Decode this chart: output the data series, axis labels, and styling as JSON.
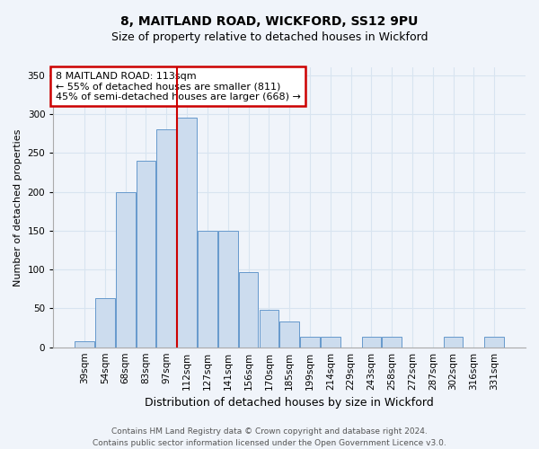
{
  "title1": "8, MAITLAND ROAD, WICKFORD, SS12 9PU",
  "title2": "Size of property relative to detached houses in Wickford",
  "xlabel": "Distribution of detached houses by size in Wickford",
  "ylabel": "Number of detached properties",
  "categories": [
    "39sqm",
    "54sqm",
    "68sqm",
    "83sqm",
    "97sqm",
    "112sqm",
    "127sqm",
    "141sqm",
    "156sqm",
    "170sqm",
    "185sqm",
    "199sqm",
    "214sqm",
    "229sqm",
    "243sqm",
    "258sqm",
    "272sqm",
    "287sqm",
    "302sqm",
    "316sqm",
    "331sqm"
  ],
  "values": [
    8,
    63,
    200,
    240,
    280,
    295,
    150,
    150,
    97,
    48,
    33,
    13,
    13,
    0,
    13,
    13,
    0,
    0,
    13,
    0,
    13
  ],
  "bar_color": "#ccdcee",
  "bar_edge_color": "#6699cc",
  "bar_linewidth": 0.7,
  "vline_x": 4.5,
  "vline_color": "#cc0000",
  "ylim": [
    0,
    360
  ],
  "yticks": [
    0,
    50,
    100,
    150,
    200,
    250,
    300,
    350
  ],
  "annotation_title": "8 MAITLAND ROAD: 113sqm",
  "annotation_line1": "← 55% of detached houses are smaller (811)",
  "annotation_line2": "45% of semi-detached houses are larger (668) →",
  "annotation_box_color": "#cc0000",
  "footer1": "Contains HM Land Registry data © Crown copyright and database right 2024.",
  "footer2": "Contains public sector information licensed under the Open Government Licence v3.0.",
  "bg_color": "#f0f4fa",
  "grid_color": "#d8e4f0",
  "title1_fontsize": 10,
  "title2_fontsize": 9,
  "xlabel_fontsize": 9,
  "ylabel_fontsize": 8,
  "tick_fontsize": 7.5,
  "annotation_fontsize": 8,
  "footer_fontsize": 6.5
}
